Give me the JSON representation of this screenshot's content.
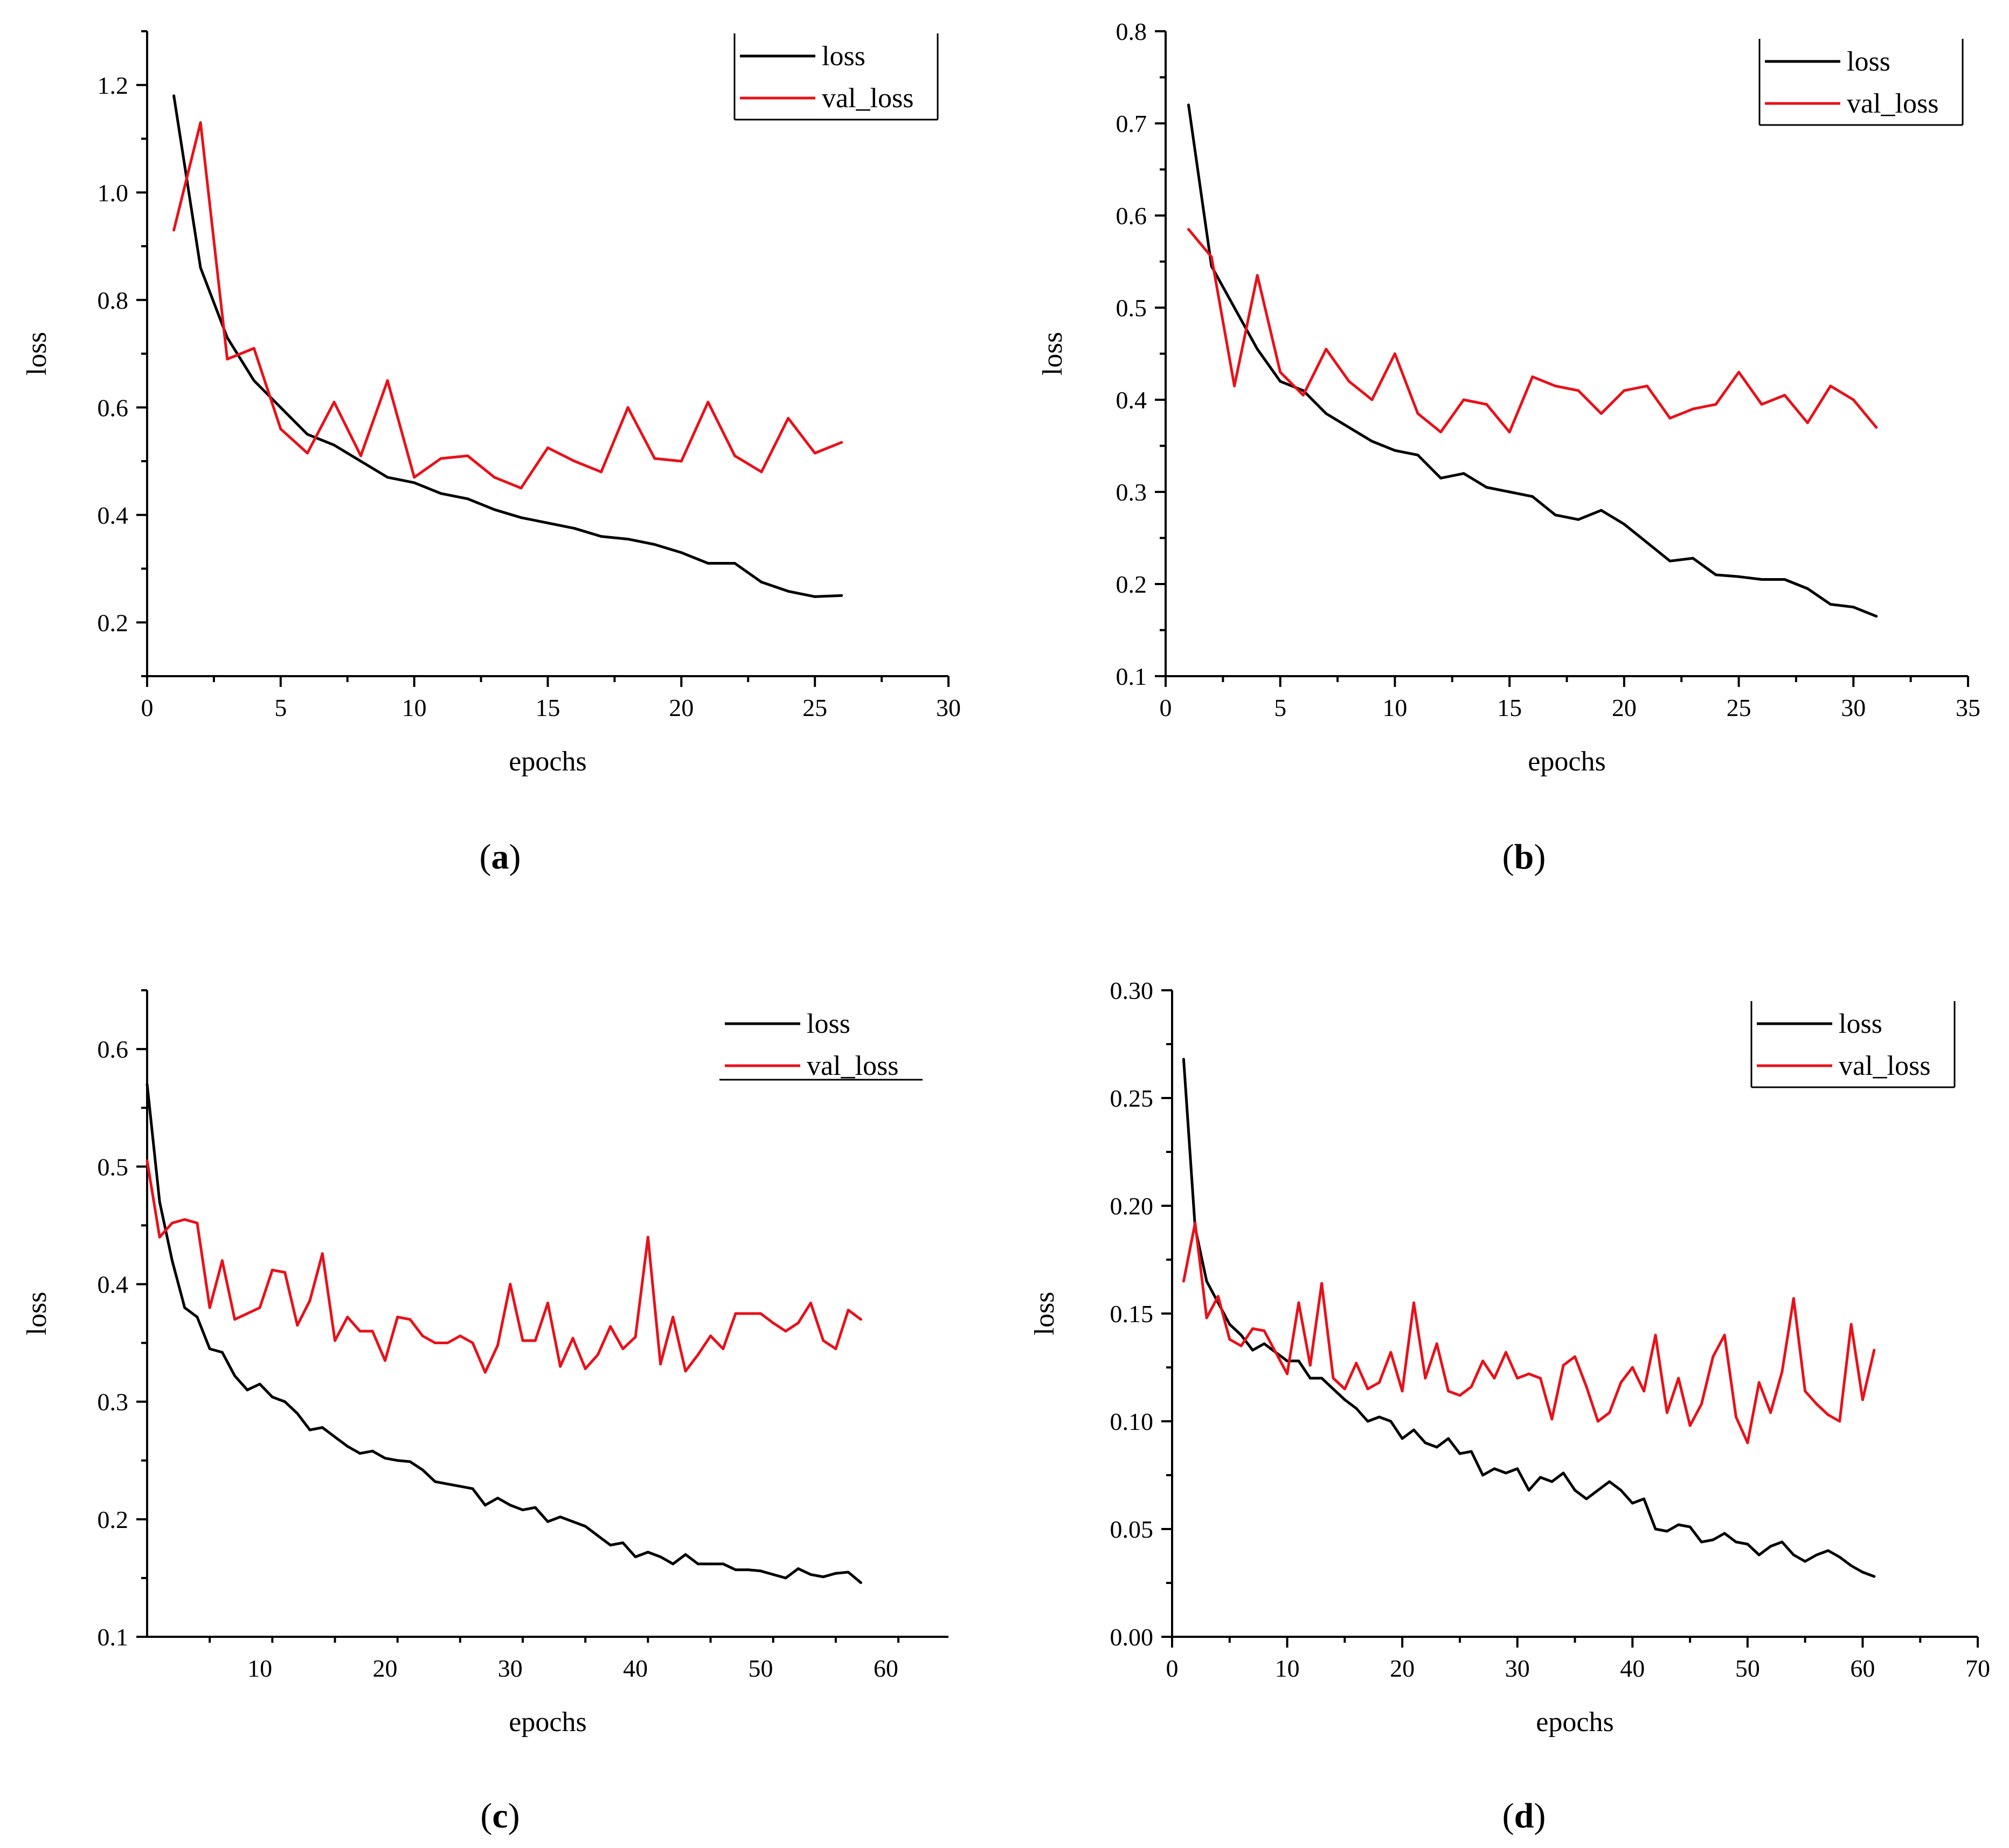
{
  "figure": {
    "panels": [
      "(a)",
      "(b)",
      "(c)",
      "(d)"
    ]
  },
  "chart_data": [
    {
      "id": "a",
      "caption": "(a)",
      "type": "line",
      "title": "",
      "xlabel": "epochs",
      "ylabel": "loss",
      "xlim": [
        0,
        30
      ],
      "ylim": [
        0.1,
        1.3
      ],
      "xticks": [
        0,
        5,
        10,
        15,
        20,
        25,
        30
      ],
      "xtick_labels": [
        "0",
        "5",
        "10",
        "15",
        "20",
        "25",
        "30"
      ],
      "yticks": [
        0.2,
        0.4,
        0.6,
        0.8,
        1.0,
        1.2
      ],
      "ytick_labels": [
        "0.2",
        "0.4",
        "0.6",
        "0.8",
        "1.0",
        "1.2"
      ],
      "legend": "top-right",
      "legend_frame": "box",
      "series": [
        {
          "name": "loss",
          "color": "#000000",
          "x_start": 1,
          "values": [
            1.18,
            0.86,
            0.73,
            0.65,
            0.6,
            0.55,
            0.53,
            0.5,
            0.47,
            0.46,
            0.44,
            0.43,
            0.41,
            0.395,
            0.385,
            0.375,
            0.36,
            0.355,
            0.345,
            0.33,
            0.31,
            0.31,
            0.275,
            0.258,
            0.248,
            0.25
          ]
        },
        {
          "name": "val_loss",
          "color": "#e8111a",
          "x_start": 1,
          "values": [
            0.93,
            1.13,
            0.69,
            0.71,
            0.56,
            0.515,
            0.61,
            0.51,
            0.65,
            0.47,
            0.505,
            0.51,
            0.47,
            0.45,
            0.525,
            0.5,
            0.48,
            0.6,
            0.505,
            0.5,
            0.61,
            0.51,
            0.48,
            0.58,
            0.515,
            0.535
          ]
        }
      ]
    },
    {
      "id": "b",
      "caption": "(b)",
      "type": "line",
      "title": "",
      "xlabel": "epochs",
      "ylabel": "loss",
      "xlim": [
        0,
        35
      ],
      "ylim": [
        0.1,
        0.8
      ],
      "xticks": [
        0,
        5,
        10,
        15,
        20,
        25,
        30,
        35
      ],
      "xtick_labels": [
        "0",
        "5",
        "10",
        "15",
        "20",
        "25",
        "30",
        "35"
      ],
      "yticks": [
        0.1,
        0.2,
        0.3,
        0.4,
        0.5,
        0.6,
        0.7,
        0.8
      ],
      "ytick_labels": [
        "0.1",
        "0.2",
        "0.3",
        "0.4",
        "0.5",
        "0.6",
        "0.7",
        "0.8"
      ],
      "legend": "top-right",
      "legend_frame": "box",
      "series": [
        {
          "name": "loss",
          "color": "#000000",
          "x_start": 1,
          "values": [
            0.72,
            0.545,
            0.5,
            0.455,
            0.42,
            0.41,
            0.385,
            0.37,
            0.355,
            0.345,
            0.34,
            0.315,
            0.32,
            0.305,
            0.3,
            0.295,
            0.275,
            0.27,
            0.28,
            0.265,
            0.245,
            0.225,
            0.228,
            0.21,
            0.208,
            0.205,
            0.205,
            0.195,
            0.178,
            0.175,
            0.165
          ]
        },
        {
          "name": "val_loss",
          "color": "#e8111a",
          "x_start": 1,
          "values": [
            0.585,
            0.555,
            0.415,
            0.535,
            0.43,
            0.405,
            0.455,
            0.42,
            0.4,
            0.45,
            0.385,
            0.365,
            0.4,
            0.395,
            0.365,
            0.425,
            0.415,
            0.41,
            0.385,
            0.41,
            0.415,
            0.38,
            0.39,
            0.395,
            0.43,
            0.395,
            0.405,
            0.375,
            0.415,
            0.4,
            0.37
          ]
        }
      ]
    },
    {
      "id": "c",
      "caption": "(c)",
      "type": "line",
      "title": "",
      "xlabel": "epochs",
      "ylabel": "loss",
      "xlim": [
        1,
        65
      ],
      "ylim": [
        0.1,
        0.65
      ],
      "xticks": [
        10,
        20,
        30,
        40,
        50,
        60
      ],
      "xtick_labels": [
        "10",
        "20",
        "30",
        "40",
        "50",
        "60"
      ],
      "yticks": [
        0.1,
        0.2,
        0.3,
        0.4,
        0.5,
        0.6
      ],
      "ytick_labels": [
        "0.1",
        "0.2",
        "0.3",
        "0.4",
        "0.5",
        "0.6"
      ],
      "legend": "top-right",
      "legend_frame": "underline",
      "series": [
        {
          "name": "loss",
          "color": "#000000",
          "x_start": 1,
          "values": [
            0.57,
            0.47,
            0.42,
            0.38,
            0.372,
            0.345,
            0.342,
            0.322,
            0.31,
            0.315,
            0.304,
            0.3,
            0.29,
            0.276,
            0.278,
            0.27,
            0.262,
            0.256,
            0.258,
            0.252,
            0.25,
            0.249,
            0.242,
            0.232,
            0.23,
            0.228,
            0.226,
            0.212,
            0.218,
            0.212,
            0.208,
            0.21,
            0.198,
            0.202,
            0.198,
            0.194,
            0.186,
            0.178,
            0.18,
            0.168,
            0.172,
            0.168,
            0.162,
            0.17,
            0.162,
            0.162,
            0.162,
            0.157,
            0.157,
            0.156,
            0.153,
            0.15,
            0.158,
            0.153,
            0.151,
            0.154,
            0.155,
            0.146
          ]
        },
        {
          "name": "val_loss",
          "color": "#e8111a",
          "x_start": 1,
          "values": [
            0.505,
            0.44,
            0.452,
            0.455,
            0.452,
            0.38,
            0.42,
            0.37,
            0.375,
            0.38,
            0.412,
            0.41,
            0.365,
            0.386,
            0.426,
            0.352,
            0.372,
            0.36,
            0.36,
            0.335,
            0.372,
            0.37,
            0.356,
            0.35,
            0.35,
            0.356,
            0.35,
            0.325,
            0.348,
            0.4,
            0.352,
            0.352,
            0.384,
            0.33,
            0.354,
            0.328,
            0.34,
            0.364,
            0.345,
            0.355,
            0.44,
            0.332,
            0.372,
            0.326,
            0.34,
            0.356,
            0.345,
            0.375,
            0.375,
            0.375,
            0.367,
            0.36,
            0.367,
            0.384,
            0.352,
            0.345,
            0.378,
            0.37
          ]
        }
      ]
    },
    {
      "id": "d",
      "caption": "(d)",
      "type": "line",
      "title": "",
      "xlabel": "epochs",
      "ylabel": "loss",
      "xlim": [
        0,
        70
      ],
      "ylim": [
        0.0,
        0.3
      ],
      "xticks": [
        0,
        10,
        20,
        30,
        40,
        50,
        60,
        70
      ],
      "xtick_labels": [
        "0",
        "10",
        "20",
        "30",
        "40",
        "50",
        "60",
        "70"
      ],
      "yticks": [
        0.0,
        0.05,
        0.1,
        0.15,
        0.2,
        0.25,
        0.3
      ],
      "ytick_labels": [
        "0.00",
        "0.05",
        "0.10",
        "0.15",
        "0.20",
        "0.25",
        "0.30"
      ],
      "legend": "top-right",
      "legend_frame": "box",
      "series": [
        {
          "name": "loss",
          "color": "#000000",
          "x_start": 1,
          "values": [
            0.268,
            0.19,
            0.165,
            0.155,
            0.145,
            0.14,
            0.133,
            0.136,
            0.132,
            0.128,
            0.128,
            0.12,
            0.12,
            0.115,
            0.11,
            0.106,
            0.1,
            0.102,
            0.1,
            0.092,
            0.096,
            0.09,
            0.088,
            0.092,
            0.085,
            0.086,
            0.075,
            0.078,
            0.076,
            0.078,
            0.068,
            0.074,
            0.072,
            0.076,
            0.068,
            0.064,
            0.068,
            0.072,
            0.068,
            0.062,
            0.064,
            0.05,
            0.049,
            0.052,
            0.051,
            0.044,
            0.045,
            0.048,
            0.044,
            0.043,
            0.038,
            0.042,
            0.044,
            0.038,
            0.035,
            0.038,
            0.04,
            0.037,
            0.033,
            0.03,
            0.028
          ]
        },
        {
          "name": "val_loss",
          "color": "#e8111a",
          "x_start": 1,
          "values": [
            0.165,
            0.192,
            0.148,
            0.158,
            0.138,
            0.135,
            0.143,
            0.142,
            0.132,
            0.122,
            0.155,
            0.126,
            0.164,
            0.12,
            0.115,
            0.127,
            0.115,
            0.118,
            0.132,
            0.114,
            0.155,
            0.12,
            0.136,
            0.114,
            0.112,
            0.116,
            0.128,
            0.12,
            0.132,
            0.12,
            0.122,
            0.12,
            0.101,
            0.126,
            0.13,
            0.116,
            0.1,
            0.104,
            0.118,
            0.125,
            0.114,
            0.14,
            0.104,
            0.12,
            0.098,
            0.108,
            0.13,
            0.14,
            0.102,
            0.09,
            0.118,
            0.104,
            0.123,
            0.157,
            0.114,
            0.108,
            0.103,
            0.1,
            0.145,
            0.11,
            0.133
          ]
        }
      ]
    }
  ]
}
